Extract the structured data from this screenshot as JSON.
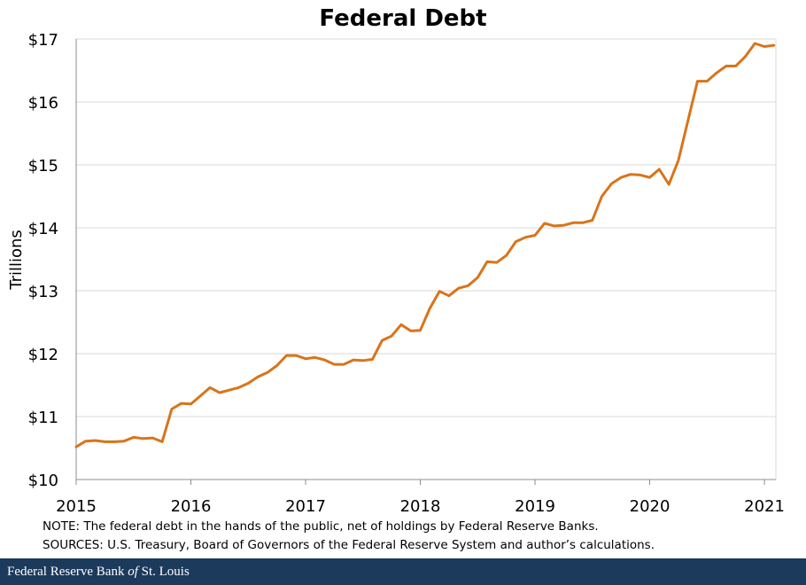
{
  "chart_data": {
    "type": "line",
    "title": "Federal Debt",
    "ylabel": "Trillions",
    "xlabel": "",
    "ylim": [
      10,
      17
    ],
    "xlim": [
      2015,
      2021.1
    ],
    "y_ticks": [
      "$10",
      "$11",
      "$12",
      "$13",
      "$14",
      "$15",
      "$16",
      "$17"
    ],
    "x_ticks": [
      "2015",
      "2016",
      "2017",
      "2018",
      "2019",
      "2020",
      "2021"
    ],
    "grid": "horizontal",
    "line_color": "#d9741a",
    "series": [
      {
        "x": [
          2015.0,
          2015.083,
          2015.167,
          2015.25,
          2015.333,
          2015.417,
          2015.5,
          2015.583,
          2015.667,
          2015.75,
          2015.833,
          2015.917,
          2016.0,
          2016.083,
          2016.167,
          2016.25,
          2016.333,
          2016.417,
          2016.5,
          2016.583,
          2016.667,
          2016.75,
          2016.833,
          2016.917,
          2017.0,
          2017.083,
          2017.167,
          2017.25,
          2017.333,
          2017.417,
          2017.5,
          2017.583,
          2017.667,
          2017.75,
          2017.833,
          2017.917,
          2018.0,
          2018.083,
          2018.167,
          2018.25,
          2018.333,
          2018.417,
          2018.5,
          2018.583,
          2018.667,
          2018.75,
          2018.833,
          2018.917,
          2019.0,
          2019.083,
          2019.167,
          2019.25,
          2019.333,
          2019.417,
          2019.5,
          2019.583,
          2019.667,
          2019.75,
          2019.833,
          2019.917,
          2020.0,
          2020.083,
          2020.167,
          2020.25,
          2020.333,
          2020.417,
          2020.5,
          2020.583,
          2020.667,
          2020.75,
          2020.833,
          2020.917,
          2021.0,
          2021.083
        ],
        "values": [
          10.52,
          10.61,
          10.62,
          10.6,
          10.6,
          10.61,
          10.67,
          10.65,
          10.66,
          10.6,
          11.12,
          11.21,
          11.2,
          11.33,
          11.46,
          11.38,
          11.42,
          11.46,
          11.53,
          11.63,
          11.7,
          11.81,
          11.97,
          11.97,
          11.92,
          11.94,
          11.9,
          11.83,
          11.83,
          11.9,
          11.89,
          11.91,
          12.21,
          12.28,
          12.46,
          12.36,
          12.37,
          12.72,
          12.99,
          12.92,
          13.04,
          13.08,
          13.21,
          13.46,
          13.45,
          13.56,
          13.78,
          13.85,
          13.88,
          14.07,
          14.03,
          14.04,
          14.08,
          14.08,
          14.12,
          14.5,
          14.7,
          14.8,
          14.85,
          14.84,
          14.8,
          14.93,
          14.69,
          15.07,
          15.7,
          16.33,
          16.33,
          16.46,
          16.57,
          16.57,
          16.72,
          16.93,
          16.88,
          16.9
        ]
      }
    ]
  },
  "notes": {
    "note": "NOTE: The federal debt in the hands of the public, net of holdings by Federal Reserve Banks.",
    "sources": "SOURCES: U.S. Treasury, Board of Governors  of the Federal Reserve System and author’s calculations."
  },
  "footer": {
    "prefix": "Federal Reserve Bank ",
    "of": "of",
    "suffix": " St. Louis"
  }
}
